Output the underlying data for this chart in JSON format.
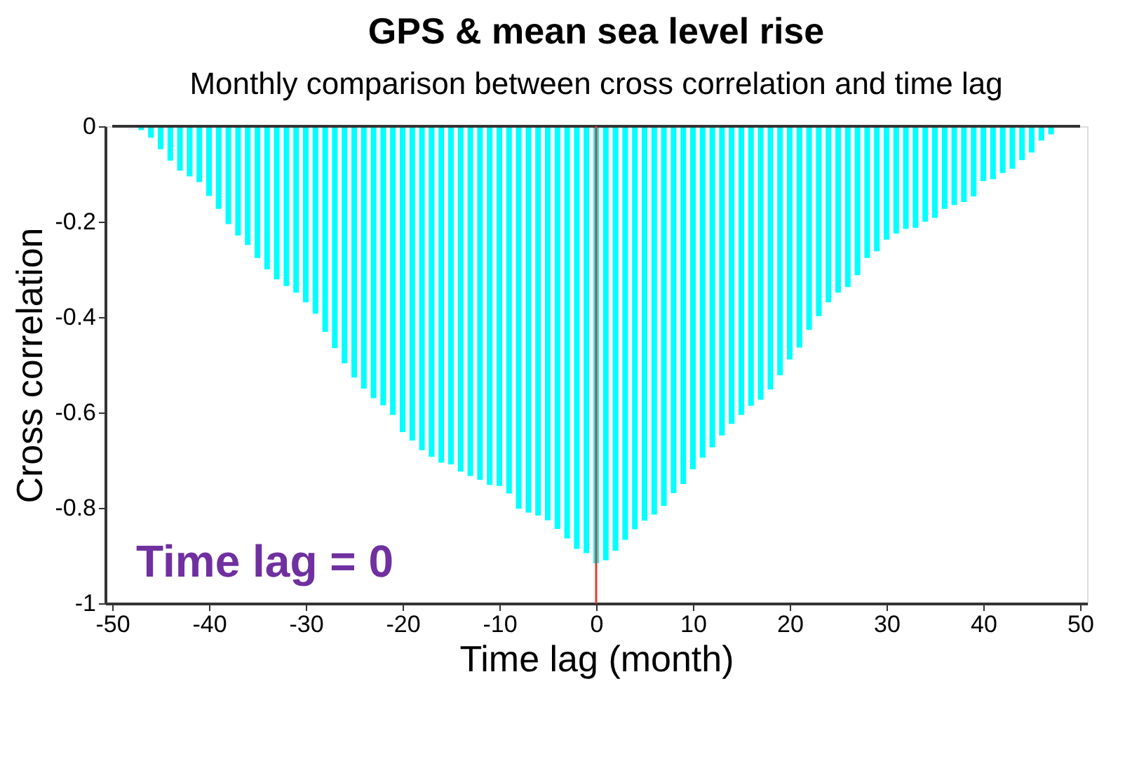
{
  "chart_data": {
    "type": "bar",
    "title": "GPS & mean sea level rise",
    "subtitle": "Monthly comparison between cross correlation and time lag",
    "xlabel": "Time lag (month)",
    "ylabel": "Cross correlation",
    "x": [
      -47,
      -46,
      -45,
      -44,
      -43,
      -42,
      -41,
      -40,
      -39,
      -38,
      -37,
      -36,
      -35,
      -34,
      -33,
      -32,
      -31,
      -30,
      -29,
      -28,
      -27,
      -26,
      -25,
      -24,
      -23,
      -22,
      -21,
      -20,
      -19,
      -18,
      -17,
      -16,
      -15,
      -14,
      -13,
      -12,
      -11,
      -10,
      -9,
      -8,
      -7,
      -6,
      -5,
      -4,
      -3,
      -2,
      -1,
      0,
      1,
      2,
      3,
      4,
      5,
      6,
      7,
      8,
      9,
      10,
      11,
      12,
      13,
      14,
      15,
      16,
      17,
      18,
      19,
      20,
      21,
      22,
      23,
      24,
      25,
      26,
      27,
      28,
      29,
      30,
      31,
      32,
      33,
      34,
      35,
      36,
      37,
      38,
      39,
      40,
      41,
      42,
      43,
      44,
      45,
      46,
      47
    ],
    "series": [
      {
        "color": "#00ffff",
        "values": [
          -0.008,
          -0.024,
          -0.048,
          -0.072,
          -0.093,
          -0.105,
          -0.117,
          -0.146,
          -0.173,
          -0.205,
          -0.229,
          -0.249,
          -0.276,
          -0.3,
          -0.321,
          -0.335,
          -0.349,
          -0.369,
          -0.393,
          -0.431,
          -0.465,
          -0.497,
          -0.527,
          -0.55,
          -0.57,
          -0.585,
          -0.605,
          -0.641,
          -0.659,
          -0.679,
          -0.693,
          -0.705,
          -0.709,
          -0.724,
          -0.733,
          -0.741,
          -0.752,
          -0.754,
          -0.77,
          -0.802,
          -0.81,
          -0.816,
          -0.826,
          -0.844,
          -0.864,
          -0.886,
          -0.895,
          -0.916,
          -0.91,
          -0.89,
          -0.867,
          -0.845,
          -0.827,
          -0.814,
          -0.796,
          -0.769,
          -0.75,
          -0.719,
          -0.695,
          -0.673,
          -0.648,
          -0.624,
          -0.605,
          -0.586,
          -0.573,
          -0.552,
          -0.522,
          -0.489,
          -0.464,
          -0.427,
          -0.398,
          -0.369,
          -0.349,
          -0.337,
          -0.312,
          -0.276,
          -0.262,
          -0.238,
          -0.225,
          -0.215,
          -0.213,
          -0.2,
          -0.192,
          -0.173,
          -0.165,
          -0.159,
          -0.147,
          -0.115,
          -0.111,
          -0.098,
          -0.089,
          -0.071,
          -0.055,
          -0.03,
          -0.017
        ]
      }
    ],
    "xlim": [
      -50,
      50
    ],
    "xticks": [
      -50,
      -40,
      -30,
      -20,
      -10,
      0,
      10,
      20,
      30,
      40,
      50
    ],
    "ylim": [
      -1,
      0
    ],
    "yticks": [
      {
        "value": -1,
        "label": "-1"
      },
      {
        "value": -0.8,
        "label": "-0.8"
      },
      {
        "value": -0.6,
        "label": "-0.6"
      },
      {
        "value": -0.4,
        "label": "-0.4"
      },
      {
        "value": -0.2,
        "label": "-0.2"
      },
      0
    ],
    "ref_lines": [
      {
        "axis": "x",
        "value": 0,
        "color": "#e03c31"
      }
    ],
    "annotations": [
      "Time lag = 0"
    ],
    "grid": false
  }
}
